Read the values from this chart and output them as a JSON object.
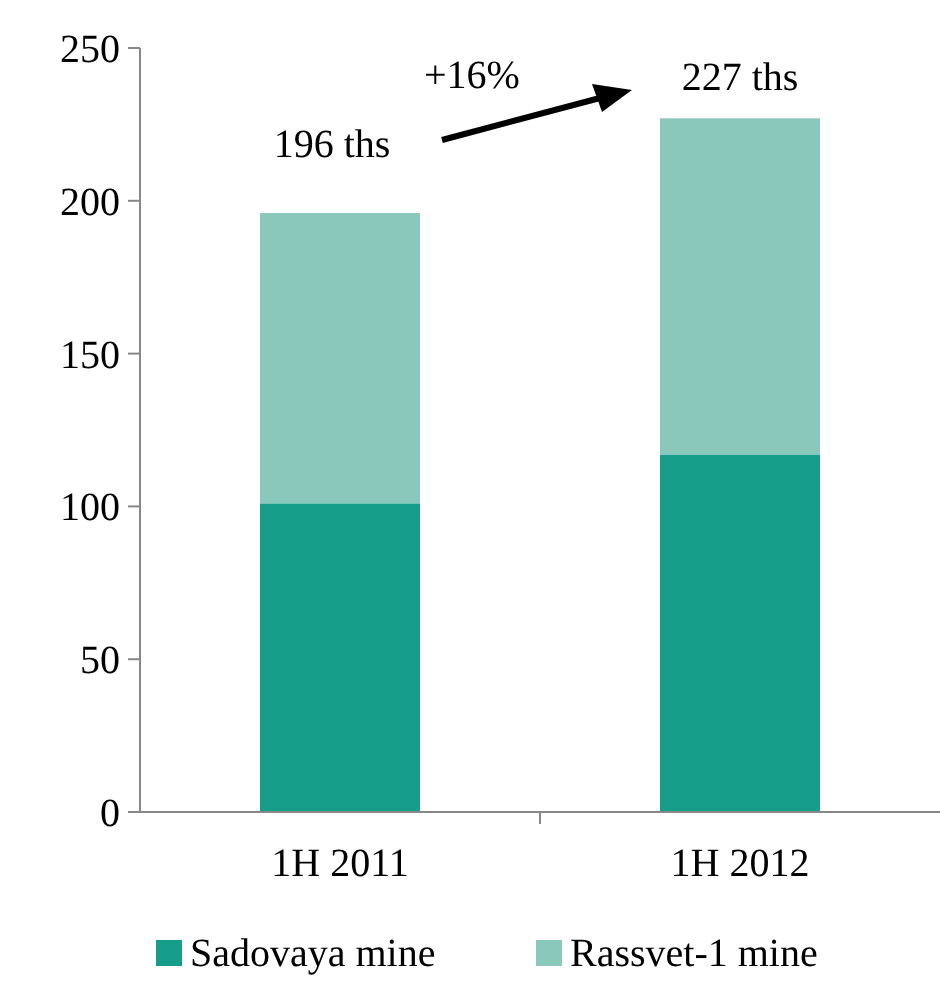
{
  "chart_data": {
    "type": "bar",
    "stacked": true,
    "categories": [
      "1H 2011",
      "1H 2012"
    ],
    "series": [
      {
        "name": "Sadovaya mine",
        "color": "#169e8b",
        "values": [
          101,
          117
        ]
      },
      {
        "name": "Rassvet-1 mine",
        "color": "#8bc8bc",
        "values": [
          95,
          110
        ]
      }
    ],
    "ylim": [
      0,
      250
    ],
    "yticks": [
      0,
      50,
      100,
      150,
      200,
      250
    ],
    "totals": [
      "196 ths",
      "227 ths"
    ],
    "annotations": [
      "+16%"
    ],
    "legend": "bottom",
    "grid": false
  }
}
